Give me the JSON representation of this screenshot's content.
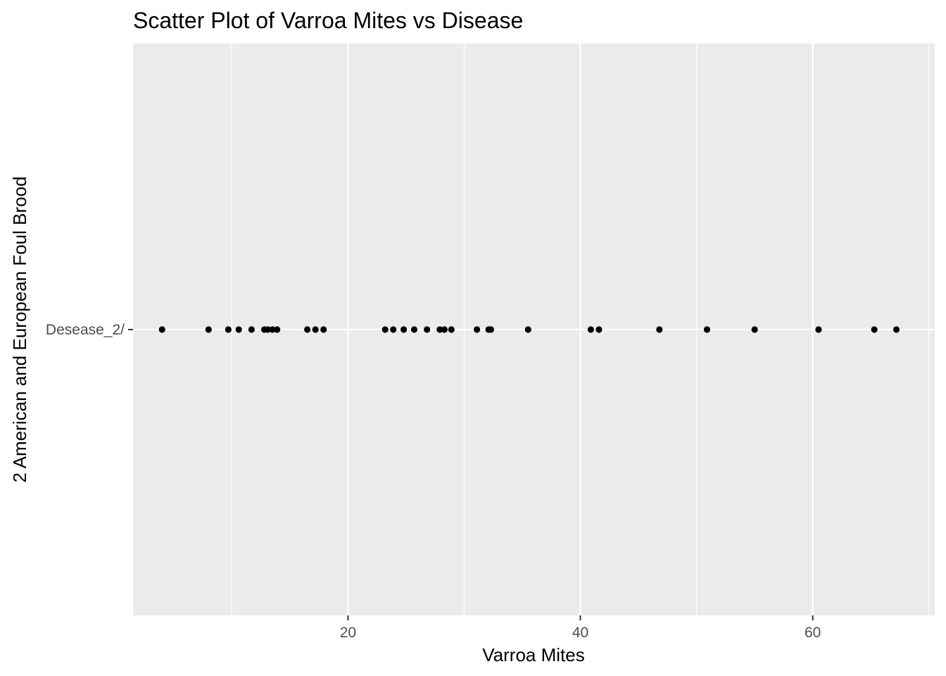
{
  "chart_data": {
    "type": "scatter",
    "title": "Scatter Plot of Varroa Mites vs Disease",
    "xlabel": "Varroa Mites",
    "ylabel": "2 American and European Foul Brood",
    "xlim": [
      1.5,
      70.5
    ],
    "x_major_ticks": [
      20,
      40,
      60
    ],
    "x_minor_ticks": [
      10,
      30,
      50,
      70
    ],
    "y_categories": [
      "Desease_2/"
    ],
    "grid": true,
    "panel_background": "#ebebeb",
    "grid_color": "#ffffff",
    "point_color": "#000000",
    "series": [
      {
        "category": "Desease_2/",
        "x": [
          4.0,
          8.0,
          9.7,
          10.6,
          11.7,
          12.8,
          13.1,
          13.5,
          13.9,
          16.5,
          17.2,
          17.9,
          23.2,
          23.9,
          24.8,
          25.7,
          26.8,
          27.9,
          28.3,
          28.9,
          31.1,
          32.1,
          32.3,
          35.5,
          40.9,
          41.6,
          46.8,
          50.9,
          55.0,
          60.5,
          65.3,
          67.2
        ]
      }
    ]
  }
}
